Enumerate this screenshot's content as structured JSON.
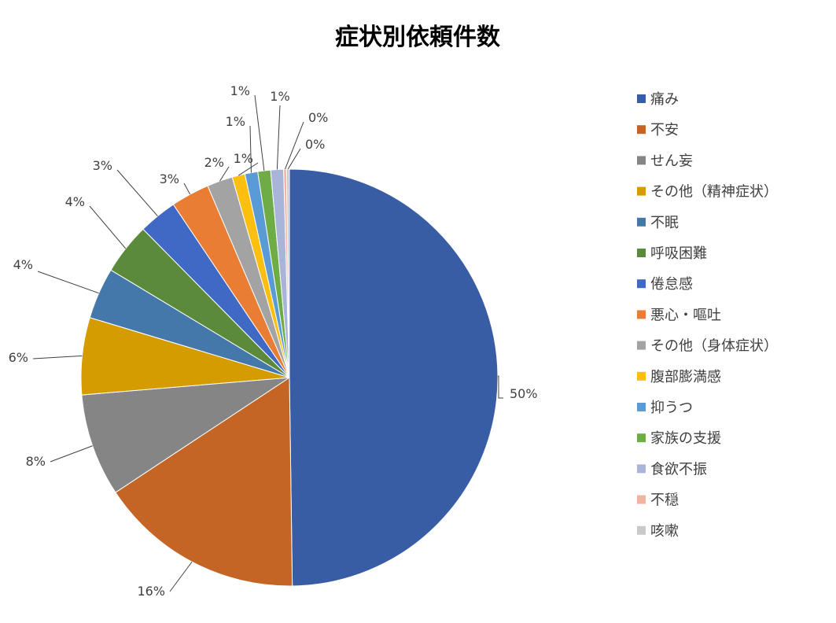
{
  "chart_data": {
    "type": "pie",
    "title": "症状別依頼件数",
    "categories": [
      "痛み",
      "不安",
      "せん妄",
      "その他（精神症状）",
      "不眠",
      "呼吸困難",
      "倦怠感",
      "悪心・嘔吐",
      "その他（身体症状）",
      "腹部膨満感",
      "抑うつ",
      "家族の支援",
      "食欲不振",
      "不穏",
      "咳嗽"
    ],
    "values": [
      50,
      16,
      8,
      6,
      4,
      4,
      3,
      3,
      2,
      1,
      1,
      1,
      1,
      0,
      0
    ],
    "data_labels": [
      "50%",
      "16%",
      "8%",
      "6%",
      "4%",
      "4%",
      "3%",
      "3%",
      "2%",
      "1%",
      "1%",
      "1%",
      "1%",
      "0%",
      "0%"
    ],
    "colors": [
      "#385da4",
      "#c46425",
      "#858585",
      "#d49c00",
      "#4478aa",
      "#5b8b3a",
      "#4069c6",
      "#ea7d34",
      "#a3a3a3",
      "#fcbf0f",
      "#5a9bd5",
      "#6eac46",
      "#a9b4d9",
      "#f2b4a1",
      "#c9c9c9"
    ],
    "legend_position": "right"
  }
}
